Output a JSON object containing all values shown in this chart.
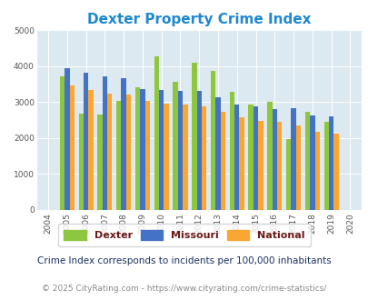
{
  "title": "Dexter Property Crime Index",
  "years": [
    "2004",
    "2005",
    "2006",
    "2007",
    "2008",
    "2009",
    "2010",
    "2011",
    "2012",
    "2013",
    "2014",
    "2015",
    "2016",
    "2017",
    "2018",
    "2019",
    "2020"
  ],
  "dexter": [
    0,
    3720,
    2680,
    2640,
    3040,
    3400,
    4270,
    3560,
    4080,
    3870,
    3280,
    2920,
    3000,
    1960,
    2720,
    2450,
    0
  ],
  "missouri": [
    0,
    3940,
    3820,
    3720,
    3650,
    3360,
    3340,
    3320,
    3320,
    3140,
    2940,
    2870,
    2800,
    2830,
    2620,
    2610,
    0
  ],
  "national": [
    0,
    3450,
    3340,
    3240,
    3200,
    3040,
    2960,
    2940,
    2890,
    2720,
    2580,
    2480,
    2440,
    2360,
    2180,
    2120,
    0
  ],
  "dexter_color": "#8dc63f",
  "missouri_color": "#4472c4",
  "national_color": "#faa632",
  "bg_color": "#dce9f0",
  "ylim": [
    0,
    5000
  ],
  "yticks": [
    0,
    1000,
    2000,
    3000,
    4000,
    5000
  ],
  "footnote1": "Crime Index corresponds to incidents per 100,000 inhabitants",
  "footnote2": "© 2025 CityRating.com - https://www.cityrating.com/crime-statistics/",
  "title_color": "#1e88d0",
  "footnote1_color": "#1a3060",
  "footnote2_color": "#888888",
  "legend_text_color": "#6b1a1a",
  "legend_labels": [
    "Dexter",
    "Missouri",
    "National"
  ],
  "bar_width": 0.26
}
